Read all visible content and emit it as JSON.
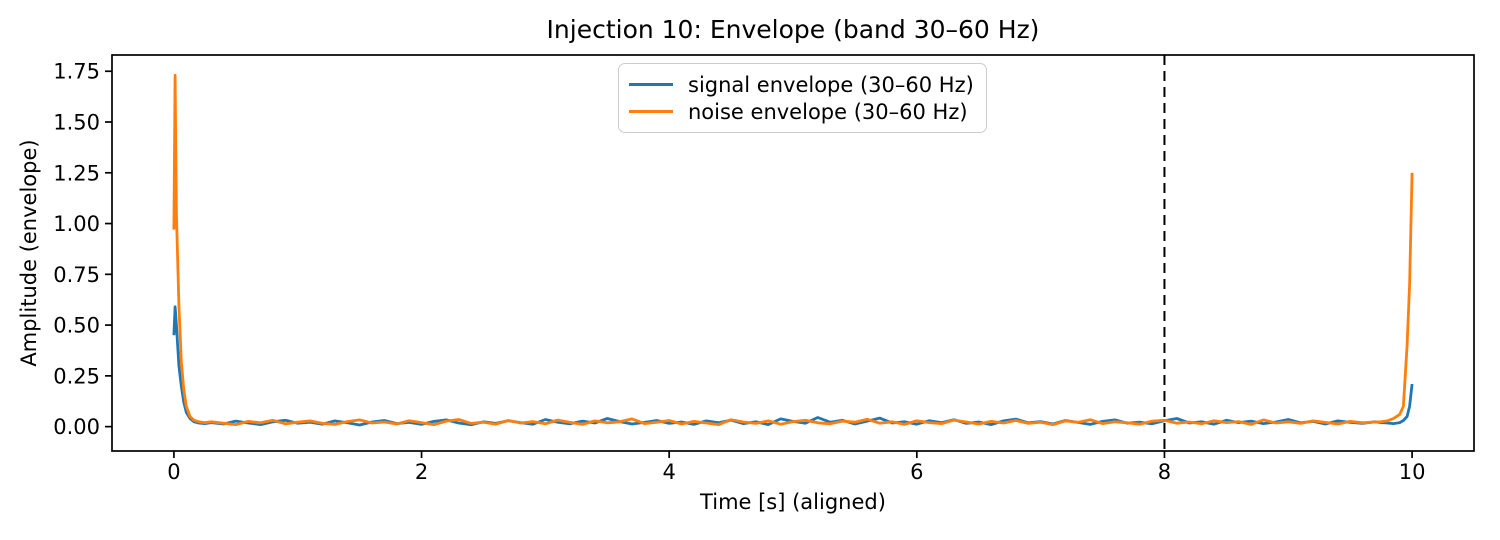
{
  "chart_data": {
    "type": "line",
    "title": "Injection 10: Envelope (band 30–60 Hz)",
    "xlabel": "Time [s] (aligned)",
    "ylabel": "Amplitude (envelope)",
    "xlim": [
      -0.5,
      10.5
    ],
    "ylim": [
      -0.12,
      1.83
    ],
    "x_ticks": [
      0,
      2,
      4,
      6,
      8,
      10
    ],
    "x_tick_labels": [
      "0",
      "2",
      "4",
      "6",
      "8",
      "10"
    ],
    "y_ticks": [
      0.0,
      0.25,
      0.5,
      0.75,
      1.0,
      1.25,
      1.5,
      1.75
    ],
    "y_tick_labels": [
      "0.00",
      "0.25",
      "0.50",
      "0.75",
      "1.00",
      "1.25",
      "1.50",
      "1.75"
    ],
    "grid": false,
    "legend_position": "upper center",
    "vline": {
      "x": 8,
      "style": "dashed",
      "color": "#000000"
    },
    "axis_color": "#000000",
    "x": [
      0.0,
      0.01,
      0.02,
      0.04,
      0.06,
      0.08,
      0.1,
      0.13,
      0.16,
      0.2,
      0.25,
      0.3,
      0.4,
      0.5,
      0.6,
      0.7,
      0.8,
      0.9,
      1.0,
      1.1,
      1.2,
      1.3,
      1.4,
      1.5,
      1.6,
      1.7,
      1.8,
      1.9,
      2.0,
      2.1,
      2.2,
      2.3,
      2.4,
      2.5,
      2.6,
      2.7,
      2.8,
      2.9,
      3.0,
      3.1,
      3.2,
      3.3,
      3.4,
      3.5,
      3.6,
      3.7,
      3.8,
      3.9,
      4.0,
      4.1,
      4.2,
      4.3,
      4.4,
      4.5,
      4.6,
      4.7,
      4.8,
      4.9,
      5.0,
      5.1,
      5.2,
      5.3,
      5.4,
      5.5,
      5.6,
      5.7,
      5.8,
      5.9,
      6.0,
      6.1,
      6.2,
      6.3,
      6.4,
      6.5,
      6.6,
      6.7,
      6.8,
      6.9,
      7.0,
      7.1,
      7.2,
      7.3,
      7.4,
      7.5,
      7.6,
      7.7,
      7.8,
      7.9,
      8.0,
      8.1,
      8.2,
      8.3,
      8.4,
      8.5,
      8.6,
      8.7,
      8.8,
      8.9,
      9.0,
      9.1,
      9.2,
      9.3,
      9.4,
      9.5,
      9.6,
      9.7,
      9.75,
      9.8,
      9.85,
      9.9,
      9.93,
      9.96,
      9.98,
      10.0
    ],
    "series": [
      {
        "name": "signal envelope (30–60 Hz)",
        "color": "#1f77b4",
        "values": [
          0.45,
          0.59,
          0.5,
          0.3,
          0.2,
          0.12,
          0.07,
          0.04,
          0.025,
          0.018,
          0.015,
          0.02,
          0.013,
          0.027,
          0.018,
          0.01,
          0.024,
          0.031,
          0.017,
          0.022,
          0.012,
          0.028,
          0.019,
          0.008,
          0.023,
          0.03,
          0.015,
          0.021,
          0.011,
          0.026,
          0.033,
          0.018,
          0.009,
          0.024,
          0.016,
          0.029,
          0.02,
          0.012,
          0.035,
          0.022,
          0.014,
          0.027,
          0.018,
          0.04,
          0.025,
          0.013,
          0.021,
          0.03,
          0.016,
          0.023,
          0.011,
          0.028,
          0.019,
          0.032,
          0.015,
          0.024,
          0.01,
          0.038,
          0.026,
          0.017,
          0.045,
          0.022,
          0.031,
          0.013,
          0.027,
          0.042,
          0.018,
          0.024,
          0.012,
          0.029,
          0.02,
          0.034,
          0.016,
          0.023,
          0.01,
          0.028,
          0.037,
          0.019,
          0.025,
          0.013,
          0.03,
          0.021,
          0.011,
          0.026,
          0.033,
          0.017,
          0.022,
          0.014,
          0.029,
          0.04,
          0.018,
          0.024,
          0.012,
          0.031,
          0.02,
          0.027,
          0.015,
          0.023,
          0.035,
          0.019,
          0.026,
          0.013,
          0.028,
          0.021,
          0.016,
          0.024,
          0.02,
          0.018,
          0.015,
          0.02,
          0.03,
          0.05,
          0.1,
          0.21
        ]
      },
      {
        "name": "noise envelope (30–60 Hz)",
        "color": "#ff7f0e",
        "values": [
          0.97,
          1.73,
          1.05,
          0.6,
          0.32,
          0.18,
          0.1,
          0.05,
          0.032,
          0.024,
          0.02,
          0.024,
          0.017,
          0.01,
          0.026,
          0.019,
          0.031,
          0.014,
          0.022,
          0.028,
          0.016,
          0.011,
          0.025,
          0.033,
          0.018,
          0.023,
          0.013,
          0.029,
          0.02,
          0.01,
          0.027,
          0.035,
          0.016,
          0.022,
          0.012,
          0.03,
          0.018,
          0.025,
          0.014,
          0.032,
          0.021,
          0.011,
          0.028,
          0.019,
          0.024,
          0.038,
          0.015,
          0.022,
          0.03,
          0.013,
          0.026,
          0.018,
          0.01,
          0.034,
          0.023,
          0.016,
          0.028,
          0.012,
          0.025,
          0.031,
          0.019,
          0.014,
          0.027,
          0.022,
          0.036,
          0.017,
          0.024,
          0.011,
          0.029,
          0.02,
          0.015,
          0.032,
          0.023,
          0.013,
          0.026,
          0.018,
          0.03,
          0.016,
          0.022,
          0.01,
          0.028,
          0.021,
          0.034,
          0.015,
          0.024,
          0.019,
          0.012,
          0.027,
          0.031,
          0.017,
          0.023,
          0.014,
          0.029,
          0.02,
          0.025,
          0.011,
          0.033,
          0.018,
          0.024,
          0.016,
          0.028,
          0.021,
          0.013,
          0.026,
          0.019,
          0.023,
          0.024,
          0.028,
          0.04,
          0.06,
          0.1,
          0.4,
          0.7,
          1.25
        ]
      }
    ]
  }
}
